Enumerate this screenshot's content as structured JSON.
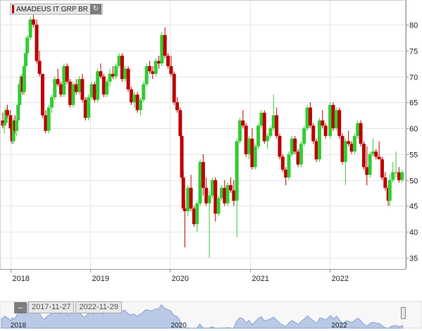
{
  "legend": {
    "label": "AMADEUS IT GRP BR",
    "color": "#c00000",
    "refresh_icon": "refresh-icon"
  },
  "navigator": {
    "start_date": "2017-11-27",
    "end_date": "2022-11-29",
    "range_icon": "range-arrows-icon",
    "x_labels": [
      "2018",
      "2020",
      "2022"
    ],
    "area_color": "#b9c9e6"
  },
  "colors": {
    "up": "#33cc33",
    "down": "#bb0000",
    "grid": "#e6e6e6"
  },
  "chart_data": {
    "type": "candlestick",
    "title": "",
    "xlabel": "",
    "ylabel": "",
    "x_ticks": [
      "2018",
      "2019",
      "2020",
      "2021",
      "2022"
    ],
    "y_ticks": [
      35,
      40,
      45,
      50,
      55,
      60,
      65,
      70,
      75,
      80
    ],
    "ylim": [
      33,
      84
    ],
    "xlim": [
      "2017-11-27",
      "2022-11-29"
    ],
    "y_axis_side": "right",
    "grid": true,
    "series": [
      {
        "fields": [
          "date",
          "open",
          "high",
          "low",
          "close"
        ],
        "candles": [
          [
            "2017-11-27",
            61.5,
            63.0,
            60.0,
            60.5
          ],
          [
            "2017-12-04",
            60.5,
            61.5,
            59.0,
            61.0
          ],
          [
            "2017-12-11",
            61.0,
            64.0,
            60.5,
            63.5
          ],
          [
            "2017-12-18",
            63.5,
            64.5,
            62.0,
            62.5
          ],
          [
            "2018-01-01",
            62.5,
            63.5,
            59.5,
            60.0
          ],
          [
            "2018-01-08",
            60.0,
            60.5,
            57.0,
            57.5
          ],
          [
            "2018-01-15",
            57.5,
            62.0,
            57.0,
            61.5
          ],
          [
            "2018-01-22",
            61.5,
            62.5,
            59.0,
            59.5
          ],
          [
            "2018-01-29",
            59.5,
            62.0,
            58.5,
            61.5
          ],
          [
            "2018-02-05",
            61.5,
            65.0,
            61.0,
            64.5
          ],
          [
            "2018-02-12",
            64.5,
            69.0,
            64.0,
            68.5
          ],
          [
            "2018-02-19",
            68.5,
            70.5,
            67.5,
            70.0
          ],
          [
            "2018-02-26",
            70.0,
            70.5,
            66.5,
            67.0
          ],
          [
            "2018-03-05",
            67.0,
            72.5,
            66.5,
            72.0
          ],
          [
            "2018-03-12",
            72.0,
            75.0,
            71.5,
            74.5
          ],
          [
            "2018-03-19",
            74.5,
            78.0,
            74.0,
            77.5
          ],
          [
            "2018-04-02",
            77.5,
            81.5,
            77.0,
            81.0
          ],
          [
            "2018-04-16",
            81.0,
            82.5,
            79.5,
            80.0
          ],
          [
            "2018-05-01",
            80.0,
            81.0,
            72.5,
            73.0
          ],
          [
            "2018-05-14",
            73.0,
            75.0,
            70.0,
            70.5
          ],
          [
            "2018-05-28",
            70.5,
            70.5,
            62.0,
            62.5
          ],
          [
            "2018-06-11",
            62.5,
            63.5,
            59.0,
            59.5
          ],
          [
            "2018-06-25",
            59.5,
            64.5,
            59.0,
            64.0
          ],
          [
            "2018-07-09",
            64.0,
            66.5,
            63.0,
            66.0
          ],
          [
            "2018-07-23",
            66.0,
            70.0,
            65.5,
            69.5
          ],
          [
            "2018-08-06",
            69.5,
            71.5,
            68.0,
            68.5
          ],
          [
            "2018-08-20",
            68.5,
            69.0,
            66.0,
            66.5
          ],
          [
            "2018-09-03",
            66.5,
            72.5,
            66.0,
            72.0
          ],
          [
            "2018-09-17",
            72.0,
            72.5,
            68.5,
            69.0
          ],
          [
            "2018-10-01",
            69.0,
            69.5,
            64.0,
            64.5
          ],
          [
            "2018-10-15",
            64.5,
            69.0,
            64.0,
            68.5
          ],
          [
            "2018-10-29",
            68.5,
            69.5,
            66.5,
            67.0
          ],
          [
            "2018-11-12",
            67.0,
            70.0,
            66.5,
            69.5
          ],
          [
            "2018-11-26",
            69.5,
            70.5,
            65.0,
            65.5
          ],
          [
            "2018-12-10",
            65.5,
            66.0,
            61.5,
            62.0
          ],
          [
            "2018-12-24",
            62.0,
            66.5,
            61.5,
            66.0
          ],
          [
            "2019-01-07",
            66.0,
            69.0,
            65.5,
            68.5
          ],
          [
            "2019-01-21",
            68.5,
            69.0,
            65.0,
            65.5
          ],
          [
            "2019-02-04",
            65.5,
            71.5,
            65.0,
            71.0
          ],
          [
            "2019-02-18",
            71.0,
            72.5,
            69.5,
            70.0
          ],
          [
            "2019-03-04",
            70.0,
            70.5,
            66.0,
            66.5
          ],
          [
            "2019-03-18",
            66.5,
            69.5,
            66.0,
            69.0
          ],
          [
            "2019-04-01",
            69.0,
            71.5,
            68.0,
            70.5
          ],
          [
            "2019-04-15",
            70.5,
            72.0,
            69.5,
            70.0
          ],
          [
            "2019-04-29",
            70.0,
            72.5,
            69.5,
            72.0
          ],
          [
            "2019-05-13",
            72.0,
            74.5,
            71.5,
            74.0
          ],
          [
            "2019-05-27",
            74.0,
            74.5,
            69.0,
            69.5
          ],
          [
            "2019-06-10",
            69.5,
            72.0,
            69.0,
            71.5
          ],
          [
            "2019-06-24",
            71.5,
            72.0,
            67.0,
            67.5
          ],
          [
            "2019-07-08",
            67.5,
            68.0,
            64.5,
            65.0
          ],
          [
            "2019-07-22",
            65.0,
            67.0,
            64.0,
            66.5
          ],
          [
            "2019-08-05",
            66.5,
            67.0,
            63.0,
            63.5
          ],
          [
            "2019-08-19",
            63.5,
            66.0,
            62.5,
            65.5
          ],
          [
            "2019-09-02",
            65.5,
            69.0,
            65.0,
            68.5
          ],
          [
            "2019-09-16",
            68.5,
            72.5,
            68.0,
            72.0
          ],
          [
            "2019-09-30",
            72.0,
            73.0,
            70.5,
            71.0
          ],
          [
            "2019-10-14",
            71.0,
            72.0,
            69.5,
            70.5
          ],
          [
            "2019-10-28",
            70.5,
            73.5,
            70.0,
            73.0
          ],
          [
            "2019-11-11",
            73.0,
            74.0,
            71.5,
            72.5
          ],
          [
            "2019-11-25",
            72.5,
            78.5,
            72.0,
            78.0
          ],
          [
            "2019-12-09",
            78.0,
            79.5,
            73.5,
            74.0
          ],
          [
            "2019-12-23",
            74.0,
            74.5,
            71.5,
            72.0
          ],
          [
            "2020-01-06",
            72.0,
            74.0,
            70.0,
            70.5
          ],
          [
            "2020-01-20",
            70.5,
            71.0,
            64.5,
            65.0
          ],
          [
            "2020-02-03",
            65.0,
            66.0,
            63.0,
            63.5
          ],
          [
            "2020-02-17",
            63.5,
            64.0,
            58.0,
            58.5
          ],
          [
            "2020-02-24",
            58.5,
            59.0,
            50.0,
            50.5
          ],
          [
            "2020-03-02",
            50.5,
            52.0,
            44.0,
            44.5
          ],
          [
            "2020-03-09",
            44.5,
            46.0,
            37.0,
            44.0
          ],
          [
            "2020-03-23",
            44.0,
            49.0,
            43.0,
            48.5
          ],
          [
            "2020-04-06",
            48.5,
            51.0,
            44.0,
            44.5
          ],
          [
            "2020-04-20",
            44.5,
            45.0,
            41.0,
            41.5
          ],
          [
            "2020-05-04",
            41.5,
            46.0,
            40.0,
            45.5
          ],
          [
            "2020-05-18",
            45.5,
            54.0,
            45.0,
            53.5
          ],
          [
            "2020-06-01",
            53.5,
            55.0,
            47.0,
            48.5
          ],
          [
            "2020-06-15",
            48.5,
            50.5,
            45.0,
            45.5
          ],
          [
            "2020-06-29",
            45.5,
            48.0,
            35.0,
            47.0
          ],
          [
            "2020-07-13",
            47.0,
            50.5,
            46.5,
            50.0
          ],
          [
            "2020-07-27",
            50.0,
            50.5,
            42.0,
            43.5
          ],
          [
            "2020-08-10",
            43.5,
            47.0,
            43.0,
            46.5
          ],
          [
            "2020-08-24",
            46.5,
            49.0,
            46.0,
            48.5
          ],
          [
            "2020-09-07",
            48.5,
            50.0,
            45.0,
            45.5
          ],
          [
            "2020-09-21",
            45.5,
            49.5,
            45.0,
            49.0
          ],
          [
            "2020-10-05",
            49.0,
            50.5,
            47.5,
            48.0
          ],
          [
            "2020-10-19",
            48.0,
            50.0,
            45.0,
            46.0
          ],
          [
            "2020-11-02",
            46.0,
            58.0,
            39.0,
            57.5
          ],
          [
            "2020-11-16",
            57.5,
            62.0,
            57.0,
            61.5
          ],
          [
            "2020-11-30",
            61.5,
            63.5,
            60.0,
            60.5
          ],
          [
            "2020-12-14",
            60.5,
            61.0,
            54.5,
            55.0
          ],
          [
            "2020-12-28",
            55.0,
            58.5,
            54.0,
            58.0
          ],
          [
            "2021-01-11",
            58.0,
            60.0,
            52.0,
            52.5
          ],
          [
            "2021-01-25",
            52.5,
            57.0,
            52.0,
            56.5
          ],
          [
            "2021-02-08",
            56.5,
            61.0,
            56.0,
            60.5
          ],
          [
            "2021-02-22",
            60.5,
            63.5,
            60.0,
            63.0
          ],
          [
            "2021-03-08",
            63.0,
            63.5,
            57.0,
            57.5
          ],
          [
            "2021-03-22",
            57.5,
            59.0,
            56.0,
            58.5
          ],
          [
            "2021-04-05",
            58.5,
            60.5,
            58.0,
            60.0
          ],
          [
            "2021-04-19",
            60.0,
            66.5,
            59.5,
            62.5
          ],
          [
            "2021-05-03",
            62.5,
            64.0,
            58.0,
            58.5
          ],
          [
            "2021-05-17",
            58.5,
            59.0,
            54.0,
            54.5
          ],
          [
            "2021-05-31",
            54.5,
            55.0,
            51.5,
            52.0
          ],
          [
            "2021-06-14",
            52.0,
            52.5,
            49.0,
            50.5
          ],
          [
            "2021-06-28",
            50.5,
            55.5,
            50.0,
            55.0
          ],
          [
            "2021-07-12",
            55.0,
            58.5,
            54.5,
            58.0
          ],
          [
            "2021-07-26",
            58.0,
            58.5,
            55.0,
            55.5
          ],
          [
            "2021-08-09",
            55.5,
            56.0,
            52.5,
            53.0
          ],
          [
            "2021-08-23",
            53.0,
            57.5,
            52.5,
            57.0
          ],
          [
            "2021-09-06",
            57.0,
            60.5,
            56.5,
            60.0
          ],
          [
            "2021-09-20",
            60.0,
            64.5,
            59.5,
            64.0
          ],
          [
            "2021-10-04",
            64.0,
            65.0,
            60.0,
            60.5
          ],
          [
            "2021-10-18",
            60.5,
            61.0,
            57.0,
            57.5
          ],
          [
            "2021-11-01",
            57.5,
            58.0,
            53.5,
            54.0
          ],
          [
            "2021-11-15",
            54.0,
            62.0,
            53.5,
            61.5
          ],
          [
            "2021-11-29",
            61.5,
            63.5,
            60.0,
            60.5
          ],
          [
            "2021-12-13",
            60.5,
            61.0,
            58.0,
            58.5
          ],
          [
            "2022-01-03",
            58.5,
            65.0,
            58.0,
            64.5
          ],
          [
            "2022-01-17",
            64.5,
            65.0,
            59.5,
            60.0
          ],
          [
            "2022-01-31",
            60.0,
            64.0,
            59.5,
            63.5
          ],
          [
            "2022-02-14",
            63.5,
            64.0,
            58.0,
            58.5
          ],
          [
            "2022-02-28",
            58.5,
            59.0,
            53.0,
            53.5
          ],
          [
            "2022-03-14",
            53.5,
            58.0,
            49.0,
            57.5
          ],
          [
            "2022-03-28",
            57.5,
            59.5,
            56.5,
            57.0
          ],
          [
            "2022-04-11",
            57.0,
            57.5,
            55.0,
            55.5
          ],
          [
            "2022-04-25",
            55.5,
            59.0,
            55.0,
            58.5
          ],
          [
            "2022-05-09",
            58.5,
            61.5,
            58.0,
            61.0
          ],
          [
            "2022-05-23",
            61.0,
            61.5,
            56.5,
            57.0
          ],
          [
            "2022-06-06",
            57.0,
            57.5,
            52.0,
            52.5
          ],
          [
            "2022-06-20",
            52.5,
            56.5,
            49.0,
            51.0
          ],
          [
            "2022-07-04",
            51.0,
            55.5,
            50.5,
            55.0
          ],
          [
            "2022-07-18",
            55.0,
            58.0,
            54.5,
            55.5
          ],
          [
            "2022-08-01",
            55.5,
            56.0,
            54.0,
            54.5
          ],
          [
            "2022-08-15",
            54.5,
            57.5,
            54.0,
            54.0
          ],
          [
            "2022-08-29",
            54.0,
            54.5,
            50.0,
            50.5
          ],
          [
            "2022-09-12",
            50.5,
            51.5,
            48.0,
            48.5
          ],
          [
            "2022-09-26",
            48.5,
            49.0,
            45.0,
            46.0
          ],
          [
            "2022-10-03",
            46.0,
            51.0,
            45.0,
            50.0
          ],
          [
            "2022-10-17",
            50.0,
            53.5,
            49.5,
            51.5
          ],
          [
            "2022-10-31",
            51.5,
            55.5,
            50.5,
            51.5
          ],
          [
            "2022-11-14",
            51.5,
            52.5,
            49.5,
            50.0
          ],
          [
            "2022-11-28",
            50.0,
            52.0,
            49.5,
            51.5
          ]
        ]
      }
    ]
  }
}
